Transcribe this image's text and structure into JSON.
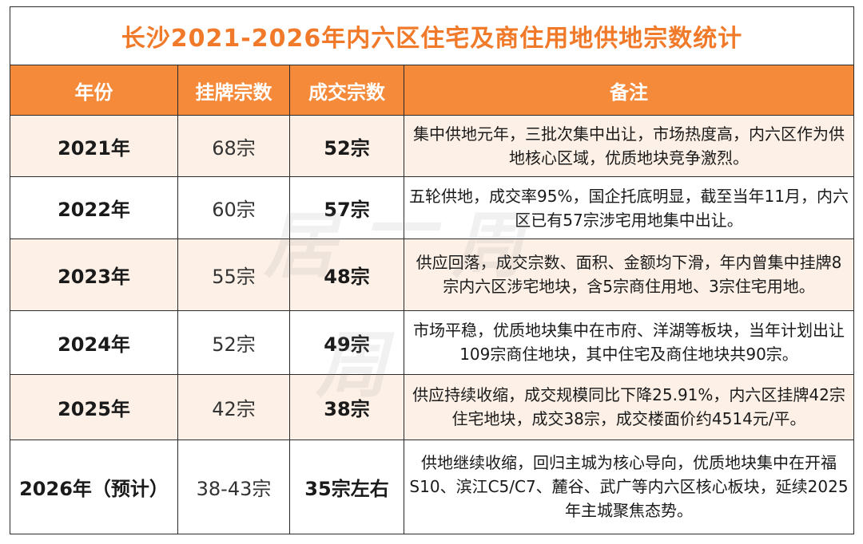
{
  "title": "长沙2021-2026年内六区住宅及商住用地供地宗数统计",
  "headers": [
    "年份",
    "挂牌宗数",
    "成交宗数",
    "备注"
  ],
  "rows": [
    {
      "year": "2021年",
      "listed": "68宗",
      "deal": "52宗",
      "note": "集中供地元年，三批次集中出让，市场热度高，内六区作为供地核心区域，优质地块竞争激烈。"
    },
    {
      "year": "2022年",
      "listed": "60宗",
      "deal": "57宗",
      "note": "五轮供地，成交率95%，国企托底明显，截至当年11月，内六区已有57宗涉宅用地集中出让。"
    },
    {
      "year": "2023年",
      "listed": "55宗",
      "deal": "48宗",
      "note": "供应回落，成交宗数、面积、金额均下滑，年内曾集中挂牌8宗内六区涉宅地块，含5宗商住用地、3宗住宅用地。"
    },
    {
      "year": "2024年",
      "listed": "52宗",
      "deal": "49宗",
      "note": "市场平稳，优质地块集中在市府、洋湖等板块，当年计划出让109宗商住地块，其中住宅及商住地块共90宗。"
    },
    {
      "year": "2025年",
      "listed": "42宗",
      "deal": "38宗",
      "note": "供应持续收缩，成交规模同比下降25.91%，内六区挂牌42宗住宅地块，成交38宗，成交楼面价约4514元/平。"
    },
    {
      "year": "2026年（预计）",
      "listed": "38-43宗",
      "deal": "35宗左右",
      "note": "供地继续收缩，回归主城为核心导向，优质地块集中在开福S10、滨江C5/C7、麓谷、武广等内六区核心板块，延续2025年主城聚焦态势。"
    }
  ],
  "watermark": [
    "居",
    "一",
    "周",
    "周"
  ],
  "colors": {
    "accent": "#f07a2a",
    "header_bg": "#f58a3a",
    "alt_row": "#fdf0e6"
  }
}
